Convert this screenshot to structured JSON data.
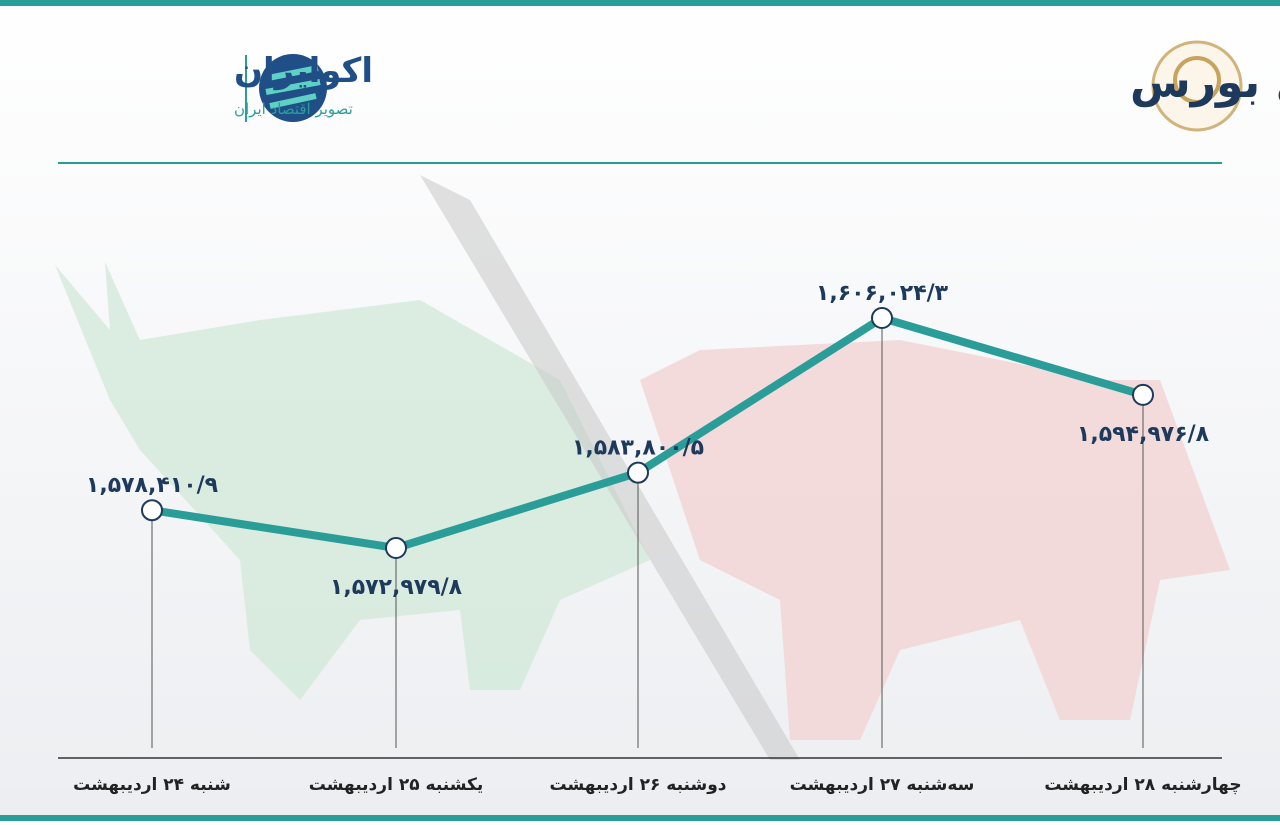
{
  "chart_data": {
    "type": "line",
    "title": "روند هفته شاخص کل بورس",
    "categories": [
      "شنبه ۲۴ اردیبهشت",
      "یکشنبه ۲۵ اردیبهشت",
      "دوشنبه ۲۶ اردیبهشت",
      "سه‌شنبه ۲۷ اردیبهشت",
      "چهارشنبه ۲۸ اردیبهشت"
    ],
    "values": [
      1578410.9,
      1572979.8,
      1583800.5,
      1606024.3,
      1594976.8
    ],
    "value_labels": [
      "۱,۵۷۸,۴۱۰/۹",
      "۱,۵۷۲,۹۷۹/۸",
      "۱,۵۸۳,۸۰۰/۵",
      "۱,۶۰۶,۰۲۴/۳",
      "۱,۵۹۴,۹۷۶/۸"
    ],
    "color": "#2a9d99"
  },
  "brand": {
    "name": "اکوایران",
    "tagline": "تصویر اقتصاد ایران"
  }
}
